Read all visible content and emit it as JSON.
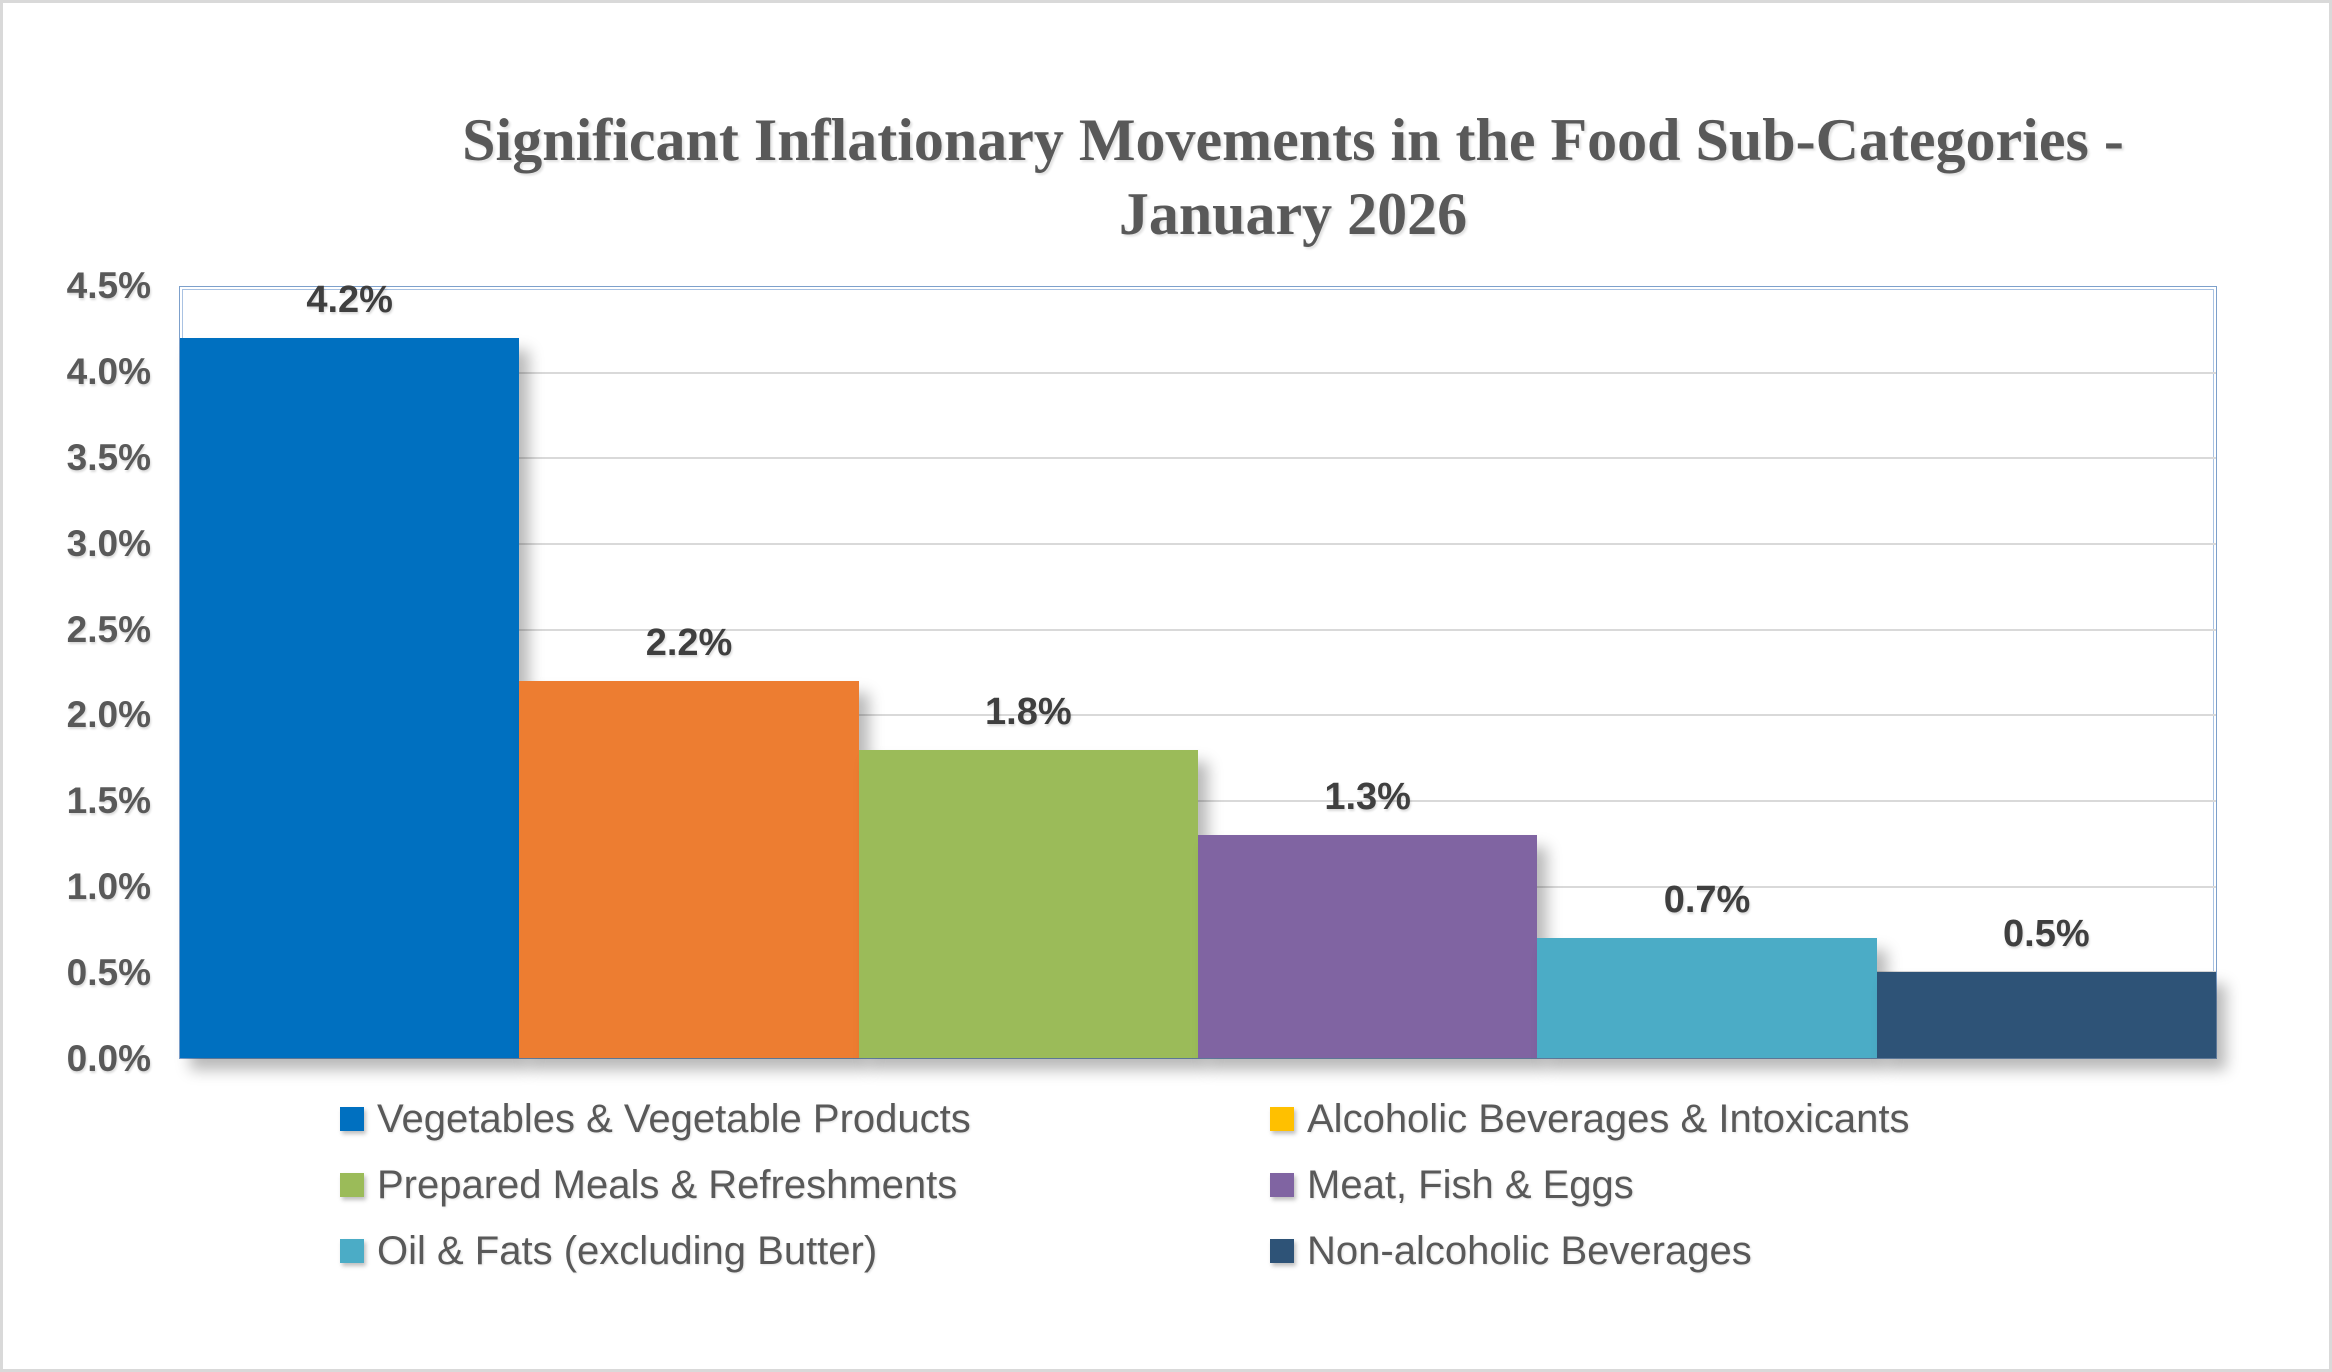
{
  "chart_data": {
    "type": "bar",
    "title": "Significant Inflationary Movements in the Food Sub-Categories - January 2026",
    "title_lines": [
      "Significant Inflationary Movements in the Food Sub-Categories -",
      "January 2026"
    ],
    "categories": [
      "Vegetables & Vegetable Products",
      "Alcoholic Beverages & Intoxicants",
      "Prepared Meals & Refreshments",
      "Meat, Fish & Eggs",
      "Oil & Fats (excluding Butter)",
      "Non-alcoholic Beverages"
    ],
    "values": [
      4.2,
      2.2,
      1.8,
      1.3,
      0.7,
      0.5
    ],
    "points": [
      {
        "label": "Vegetables & Vegetable Products",
        "value": 4.2,
        "display": "4.2%",
        "bar_color": "#0070C0",
        "legend_color": "#0070C0"
      },
      {
        "label": "Alcoholic Beverages & Intoxicants",
        "value": 2.2,
        "display": "2.2%",
        "bar_color": "#ED7D31",
        "legend_color": "#FFC000"
      },
      {
        "label": "Prepared Meals & Refreshments",
        "value": 1.8,
        "display": "1.8%",
        "bar_color": "#9BBB59",
        "legend_color": "#9BBB59"
      },
      {
        "label": "Meat, Fish & Eggs",
        "value": 1.3,
        "display": "1.3%",
        "bar_color": "#8064A2",
        "legend_color": "#8064A2"
      },
      {
        "label": "Oil & Fats (excluding Butter)",
        "value": 0.7,
        "display": "0.7%",
        "bar_color": "#4BACC6",
        "legend_color": "#4BACC6"
      },
      {
        "label": "Non-alcoholic Beverages",
        "value": 0.5,
        "display": "0.5%",
        "bar_color": "#2E5377",
        "legend_color": "#2E5377"
      }
    ],
    "xlabel": "",
    "ylabel": "",
    "ylim": [
      0,
      4.5
    ],
    "y_ticks": [
      {
        "value": 0.0,
        "label": "0.0%"
      },
      {
        "value": 0.5,
        "label": "0.5%"
      },
      {
        "value": 1.0,
        "label": "1.0%"
      },
      {
        "value": 1.5,
        "label": "1.5%"
      },
      {
        "value": 2.0,
        "label": "2.0%"
      },
      {
        "value": 2.5,
        "label": "2.5%"
      },
      {
        "value": 3.0,
        "label": "3.0%"
      },
      {
        "value": 3.5,
        "label": "3.5%"
      },
      {
        "value": 4.0,
        "label": "4.0%"
      },
      {
        "value": 4.5,
        "label": "4.5%"
      }
    ],
    "grid": true,
    "legend_position": "bottom",
    "legend_columns": 2
  },
  "style": {
    "figure_border": "#D9D9D9",
    "plot_border_color": "#7DA0CB",
    "plot_border_inner": "#A9C2E2",
    "grid_color": "#D9D9D9",
    "title_color": "#595959",
    "tick_color": "#595959",
    "label_color": "#3F3F3F",
    "legend_text_color": "#595959"
  }
}
